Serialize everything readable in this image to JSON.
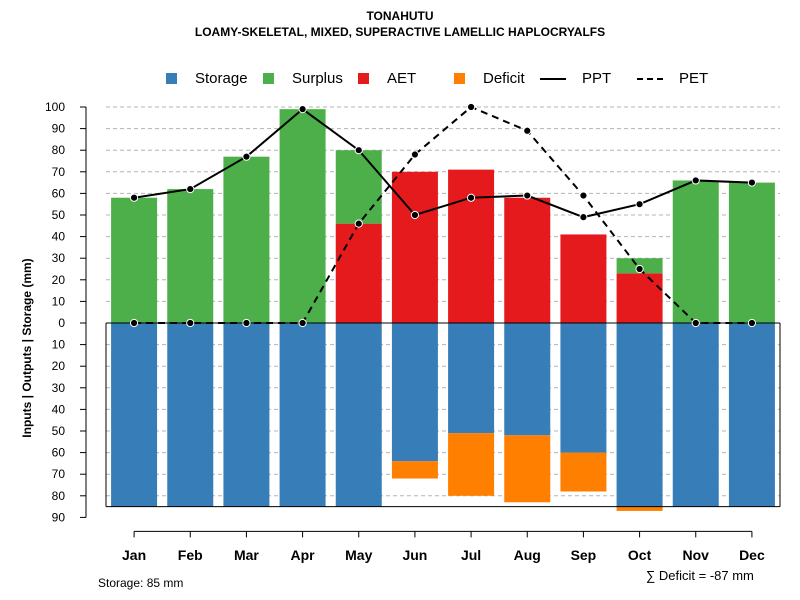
{
  "title": "TONAHUTU",
  "subtitle": "LOAMY-SKELETAL, MIXED, SUPERACTIVE LAMELLIC HAPLOCRYALFS",
  "legend": {
    "storage": "Storage",
    "surplus": "Surplus",
    "aet": "AET",
    "deficit": "Deficit",
    "ppt": "PPT",
    "pet": "PET"
  },
  "colors": {
    "storage": "#377EB8",
    "surplus": "#4DAF4A",
    "aet": "#E41A1C",
    "deficit": "#FF7F00",
    "line": "#000000"
  },
  "storage_note": "Storage: 85 mm",
  "deficit_note": "∑ Deficit = -87 mm",
  "chart_data": {
    "type": "bar",
    "title": "TONAHUTU",
    "subtitle": "LOAMY-SKELETAL, MIXED, SUPERACTIVE LAMELLIC HAPLOCRYALFS",
    "xlabel": "",
    "ylabel": "Inputs | Outputs | Storage    (mm)",
    "ylim": [
      -90,
      100
    ],
    "storage_capacity": 85,
    "categories": [
      "Jan",
      "Feb",
      "Mar",
      "Apr",
      "May",
      "Jun",
      "Jul",
      "Aug",
      "Sep",
      "Oct",
      "Nov",
      "Dec"
    ],
    "y_ticks_up": [
      0,
      10,
      20,
      30,
      40,
      50,
      60,
      70,
      80,
      90,
      100
    ],
    "y_ticks_down": [
      10,
      20,
      30,
      40,
      50,
      60,
      70,
      80,
      90
    ],
    "series": [
      {
        "name": "AET",
        "values": [
          0,
          0,
          0,
          0,
          46,
          70,
          71,
          58,
          41,
          23,
          0,
          0
        ]
      },
      {
        "name": "Surplus",
        "values": [
          58,
          62,
          77,
          99,
          34,
          0,
          0,
          0,
          0,
          7,
          66,
          65
        ]
      },
      {
        "name": "Storage",
        "values": [
          85,
          85,
          85,
          85,
          85,
          64,
          51,
          52,
          60,
          85,
          85,
          85
        ]
      },
      {
        "name": "Deficit",
        "values": [
          0,
          0,
          0,
          0,
          0,
          8,
          29,
          31,
          18,
          2,
          0,
          0
        ]
      },
      {
        "name": "PPT",
        "values": [
          58,
          62,
          77,
          99,
          80,
          50,
          58,
          59,
          49,
          55,
          66,
          65
        ]
      },
      {
        "name": "PET",
        "values": [
          0,
          0,
          0,
          0,
          46,
          78,
          100,
          89,
          59,
          25,
          0,
          0
        ]
      }
    ]
  }
}
